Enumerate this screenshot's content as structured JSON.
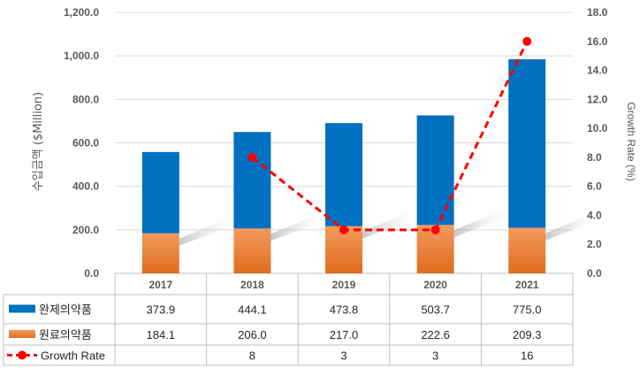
{
  "chart_data": {
    "type": "bar",
    "stacked": true,
    "categories": [
      "2017",
      "2018",
      "2019",
      "2020",
      "2021"
    ],
    "series": [
      {
        "name": "완제의약품",
        "kind": "bar",
        "color": "#0070C0",
        "values": [
          373.9,
          444.1,
          473.8,
          503.7,
          775.0
        ]
      },
      {
        "name": "원료의약품",
        "kind": "bar",
        "color": "#ED7D31",
        "values": [
          184.1,
          206.0,
          217.0,
          222.6,
          209.3
        ]
      },
      {
        "name": "Growth Rate",
        "kind": "line",
        "axis": "right",
        "color": "#FF0000",
        "line_style": "dashed",
        "values": [
          null,
          8,
          3,
          3,
          16
        ]
      }
    ],
    "ylabel": "수입금액 ($Million)",
    "ylabel_right": "Growth Rate (%)",
    "ylim": [
      0,
      1200
    ],
    "ylim_right": [
      0,
      18
    ],
    "yticks": [
      "0.0",
      "200.0",
      "400.0",
      "600.0",
      "800.0",
      "1,000.0",
      "1,200.0"
    ],
    "yticks_right": [
      "0.0",
      "2.0",
      "4.0",
      "6.0",
      "8.0",
      "10.0",
      "12.0",
      "14.0",
      "16.0",
      "18.0"
    ],
    "grid": true,
    "data_table": {
      "rows": [
        {
          "series": "완제의약품",
          "cells": [
            "373.9",
            "444.1",
            "473.8",
            "503.7",
            "775.0"
          ]
        },
        {
          "series": "원료의약품",
          "cells": [
            "184.1",
            "206.0",
            "217.0",
            "222.6",
            "209.3"
          ]
        },
        {
          "series": "Growth Rate",
          "cells": [
            "",
            "8",
            "3",
            "3",
            "16"
          ]
        }
      ]
    }
  }
}
